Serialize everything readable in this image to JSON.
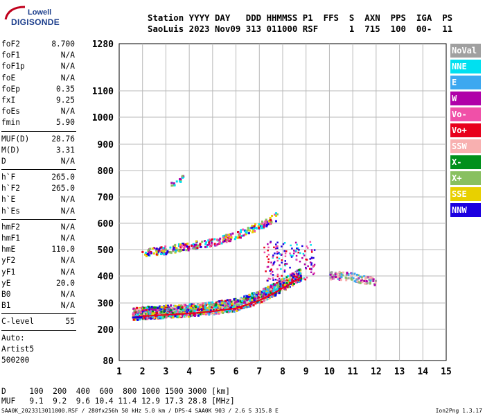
{
  "logo": {
    "line1": "Lowell",
    "line2": "DIGISONDE"
  },
  "header": {
    "line1": "Station YYYY DAY   DDD HHMMSS P1  FFS  S  AXN  PPS  IGA  PS",
    "line2": "SaoLuis 2023 Nov09 313 011000 RSF      1  715  100  00-  11"
  },
  "params": {
    "group1": [
      {
        "k": "foF2",
        "v": "8.700"
      },
      {
        "k": "foF1",
        "v": "N/A"
      },
      {
        "k": "foF1p",
        "v": "N/A"
      },
      {
        "k": "foE",
        "v": "N/A"
      },
      {
        "k": "foEp",
        "v": "0.35"
      },
      {
        "k": "fxI",
        "v": "9.25"
      },
      {
        "k": "foEs",
        "v": "N/A"
      },
      {
        "k": "fmin",
        "v": "5.90"
      }
    ],
    "group2": [
      {
        "k": "MUF(D)",
        "v": "28.76"
      },
      {
        "k": "M(D)",
        "v": "3.31"
      },
      {
        "k": "D",
        "v": "N/A"
      }
    ],
    "group3": [
      {
        "k": "h`F",
        "v": "265.0"
      },
      {
        "k": "h`F2",
        "v": "265.0"
      },
      {
        "k": "h`E",
        "v": "N/A"
      },
      {
        "k": "h`Es",
        "v": "N/A"
      }
    ],
    "group4": [
      {
        "k": "hmF2",
        "v": "N/A"
      },
      {
        "k": "hmF1",
        "v": "N/A"
      },
      {
        "k": "hmE",
        "v": "110.0"
      },
      {
        "k": "yF2",
        "v": "N/A"
      },
      {
        "k": "yF1",
        "v": "N/A"
      },
      {
        "k": "yE",
        "v": "20.0"
      },
      {
        "k": "B0",
        "v": "N/A"
      },
      {
        "k": "B1",
        "v": "N/A"
      }
    ],
    "group5": [
      {
        "k": "C-level",
        "v": "55"
      }
    ],
    "auto": [
      "Auto:",
      "Artist5",
      "500200"
    ]
  },
  "legend": [
    {
      "label": "NoVal",
      "color": "#a0a0a0"
    },
    {
      "label": "NNE",
      "color": "#00e0f0"
    },
    {
      "label": "E",
      "color": "#3ca8f0"
    },
    {
      "label": "W",
      "color": "#b000a8"
    },
    {
      "label": "Vo-",
      "color": "#f050a8"
    },
    {
      "label": "Vo+",
      "color": "#e8001c"
    },
    {
      "label": "SSW",
      "color": "#f8b0b0"
    },
    {
      "label": "X-",
      "color": "#00901c"
    },
    {
      "label": "X+",
      "color": "#88c060"
    },
    {
      "label": "SSE",
      "color": "#e8d000"
    },
    {
      "label": "NNW",
      "color": "#1c00e0"
    }
  ],
  "chart_data": {
    "type": "scatter",
    "title": "",
    "xlabel": "",
    "ylabel": "",
    "xlim": [
      1,
      15
    ],
    "x_ticks": [
      1,
      2,
      3,
      4,
      5,
      6,
      7,
      8,
      9,
      10,
      11,
      12,
      13,
      14,
      15
    ],
    "y_ticks": [
      80,
      200,
      300,
      400,
      500,
      600,
      700,
      800,
      900,
      1000,
      1100,
      1280
    ],
    "grid": true,
    "traces": [
      {
        "name": "F2 low trace",
        "x": [
          1.6,
          2.0,
          3.0,
          4.0,
          5.0,
          6.0,
          6.5,
          7.0,
          7.5,
          8.0,
          8.5,
          8.8
        ],
        "y": [
          245,
          250,
          255,
          260,
          268,
          280,
          295,
          310,
          330,
          355,
          380,
          395
        ]
      },
      {
        "name": "F2 upper echo",
        "x": [
          10.0,
          10.5,
          11.0,
          11.5,
          12.0
        ],
        "y": [
          400,
          400,
          395,
          385,
          380
        ]
      },
      {
        "name": "second hop",
        "x": [
          2.0,
          3.0,
          4.0,
          5.0,
          6.0,
          7.0,
          7.8
        ],
        "y": [
          480,
          490,
          505,
          520,
          545,
          580,
          620
        ]
      },
      {
        "name": "sporadic",
        "x": [
          3.2,
          3.5,
          3.8
        ],
        "y": [
          740,
          760,
          775
        ]
      }
    ]
  },
  "bottom": {
    "d_row": "D     100  200  400  600  800 1000 1500 3000 [km]",
    "muf_row": "MUF   9.1  9.2  9.6 10.4 11.4 12.9 17.3 28.8 [MHz]"
  },
  "footer": {
    "left": "SAA0K_2023313011000.RSF / 280fx256h 50 kHz 5.0 km / DPS-4 SAA0K 903 / 2.6 S 315.8 E",
    "right": "Ion2Png 1.3.17"
  }
}
